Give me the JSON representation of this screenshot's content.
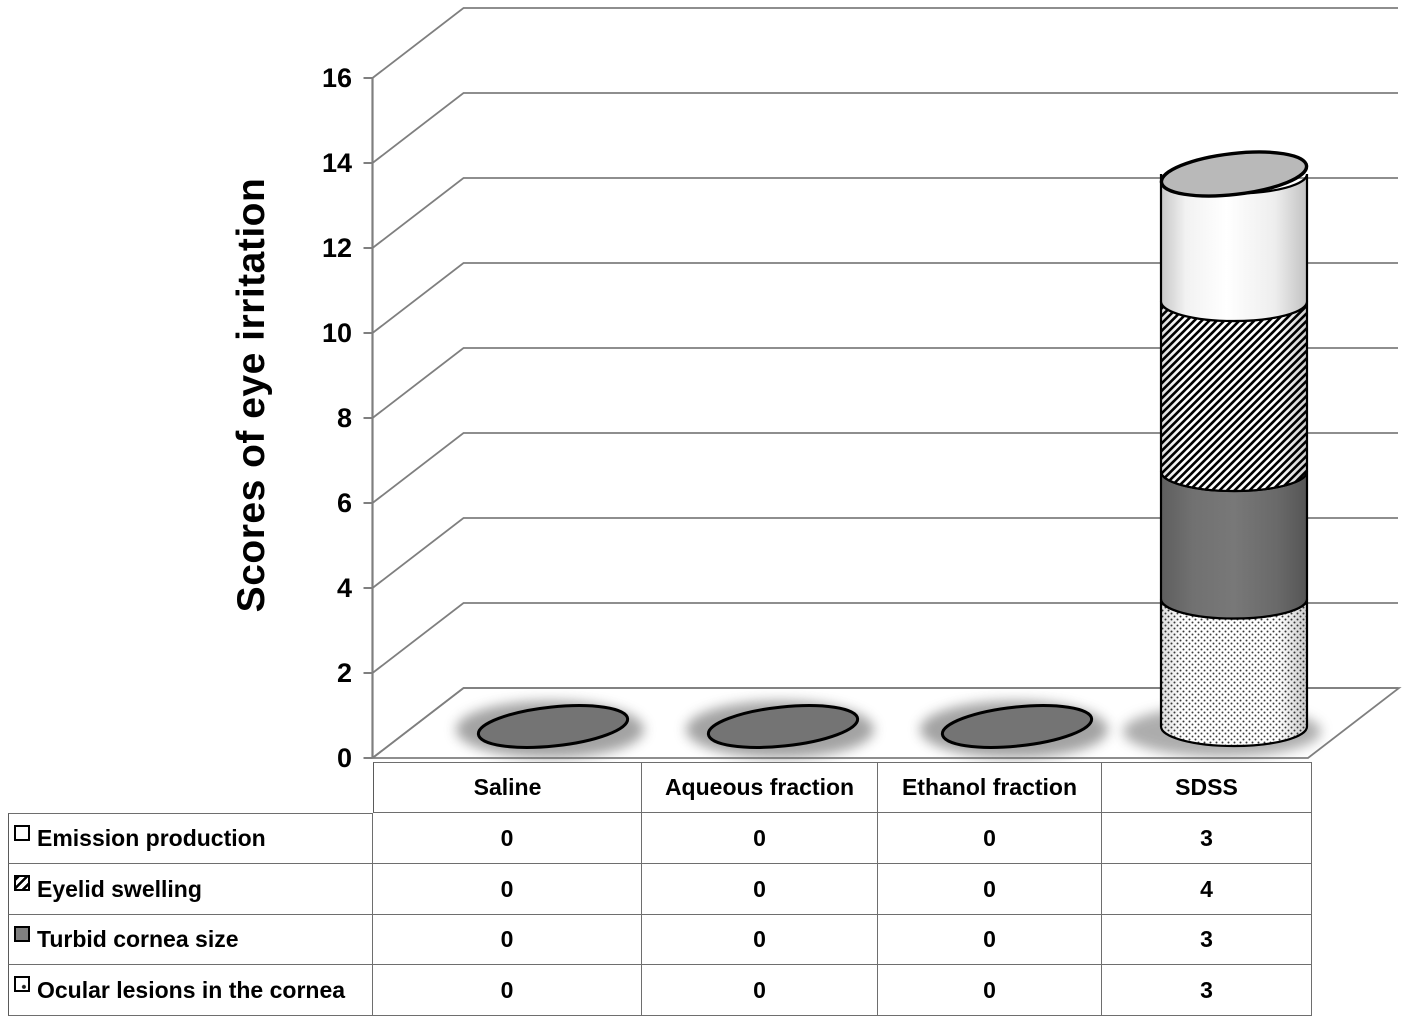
{
  "chart_data": {
    "type": "bar",
    "variant": "3d-stacked-cylinder",
    "title": "",
    "ylabel": "Scores of eye irritation",
    "xlabel": "",
    "ylim": [
      0,
      16
    ],
    "yticks": [
      0,
      2,
      4,
      6,
      8,
      10,
      12,
      14,
      16
    ],
    "grid": true,
    "legend_position": "table-left-column",
    "categories": [
      "Saline",
      "Aqueous fraction",
      "Ethanol fraction",
      "SDSS"
    ],
    "series": [
      {
        "name": "Emission production",
        "pattern": "solid-white",
        "values": [
          0,
          0,
          0,
          3
        ]
      },
      {
        "name": "Eyelid swelling",
        "pattern": "diagonal-hatch",
        "values": [
          0,
          0,
          0,
          4
        ]
      },
      {
        "name": "Turbid cornea size",
        "pattern": "solid-gray",
        "values": [
          0,
          0,
          0,
          3
        ]
      },
      {
        "name": "Ocular lesions in the cornea",
        "pattern": "dotted",
        "values": [
          0,
          0,
          0,
          3
        ]
      }
    ],
    "stack_order_bottom_to_top": [
      "Ocular lesions in the cornea",
      "Turbid cornea size",
      "Eyelid swelling",
      "Emission production"
    ],
    "totals_by_category": [
      0,
      0,
      0,
      13
    ]
  },
  "colors": {
    "background": "#ffffff",
    "grid_line": "#7f7f7f",
    "axis_text": "#000000",
    "table_border": "#6e6e6e",
    "cylinder_cap_gray": "#b9b9b9",
    "segment_dark_gray": "#6f6f6f",
    "zero_bar_ellipse": "#747474",
    "pattern_ink": "#000000",
    "shadow_gray": "#6b6b6b"
  }
}
